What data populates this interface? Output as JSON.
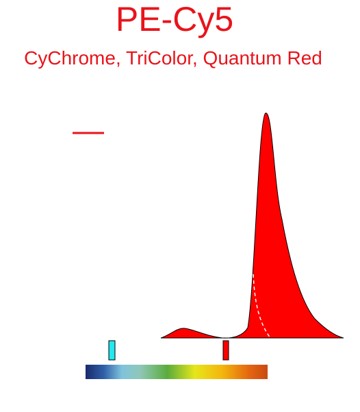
{
  "chart_data": {
    "type": "spectrum",
    "title": "PE-Cy5",
    "subtitle": "CyChrome, TriColor, Quantum Red"
  }
}
